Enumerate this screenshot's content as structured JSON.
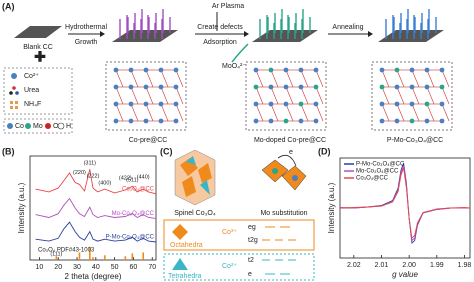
{
  "panel_a": {
    "label": "(A)",
    "blank": "Blank CC",
    "step1": [
      "Hydrothermal",
      "Growth"
    ],
    "step2": [
      "Ar Plasma",
      "Create defects",
      "Adsorption"
    ],
    "anion": "MoO₄²⁻",
    "step3": "Annealing",
    "products": [
      "Co-pre@CC",
      "Mo-doped Co-pre@CC",
      "P-Mo-Co₃O₄@CC"
    ],
    "reagents": [
      "Co²⁺",
      "Urea",
      "NH₄F"
    ],
    "atoms": [
      "Co",
      "Mo",
      "O",
      "H"
    ]
  },
  "panel_c": {
    "label": "(C)",
    "captions": [
      "Spinel Co₃O₄",
      "Mo substitution"
    ],
    "octa": {
      "name": "Octahedra",
      "ion": "Co³⁺",
      "levels": [
        "eg",
        "t2g"
      ]
    },
    "tetra": {
      "name": "Tetrahedra",
      "ion": "Co²⁺",
      "levels": [
        "t2",
        "e"
      ]
    },
    "arrow": "e"
  },
  "chart_data": [
    {
      "type": "line",
      "label": "(B)",
      "xlabel": "2 theta (degree)",
      "ylabel": "Intensity (a.u.)",
      "xlim": [
        5,
        72
      ],
      "ylim": [
        1,
        12
      ],
      "xticks": [
        10,
        20,
        30,
        40,
        50,
        60,
        70
      ],
      "x": [
        8,
        15,
        20,
        23,
        26,
        29,
        31.3,
        34,
        36.8,
        38.5,
        41,
        44.8,
        50,
        55.7,
        59.4,
        62,
        65.2,
        68,
        72
      ],
      "series": [
        {
          "name": "P-Mo-Co₃O₄@CC",
          "color": "#2b3f9e",
          "values": [
            3.2,
            3.0,
            3.3,
            4.3,
            5.0,
            4.0,
            3.4,
            3.1,
            4.0,
            3.2,
            3.0,
            3.2,
            3.0,
            3.1,
            3.4,
            3.0,
            3.3,
            3.0,
            2.9
          ]
        },
        {
          "name": "Mo-Co₃O₄@CC",
          "color": "#b04fc0",
          "values": [
            5.8,
            5.5,
            5.9,
            6.8,
            7.5,
            6.5,
            5.9,
            5.6,
            6.6,
            5.8,
            5.5,
            5.7,
            5.5,
            5.6,
            5.9,
            5.5,
            5.8,
            5.5,
            5.4
          ]
        },
        {
          "name": "Co₃O₄@CC",
          "color": "#e8474a",
          "values": [
            8.5,
            8.2,
            8.6,
            9.4,
            10.2,
            9.2,
            9.0,
            8.3,
            10.6,
            8.6,
            8.2,
            8.5,
            8.1,
            8.4,
            8.8,
            8.2,
            8.5,
            8.2,
            8.0
          ]
        }
      ],
      "reference": {
        "name": "Co₃O₄ PDF#43-1003",
        "color": "#f08a1c",
        "x": [
          19,
          31.3,
          36.8,
          38.5,
          44.8,
          55.7,
          59.4,
          65.2
        ],
        "values": [
          1.4,
          1.8,
          2.4,
          1.3,
          1.5,
          1.4,
          1.7,
          1.8
        ]
      },
      "annotations": [
        {
          "text": "(111)",
          "x": 19
        },
        {
          "text": "(220)",
          "x": 31.3
        },
        {
          "text": "(311)",
          "x": 36.8
        },
        {
          "text": "(222)",
          "x": 38.5
        },
        {
          "text": "(400)",
          "x": 44.8
        },
        {
          "text": "(422)",
          "x": 55.7
        },
        {
          "text": "(511)",
          "x": 59.4
        },
        {
          "text": "(440)",
          "x": 65.2
        }
      ]
    },
    {
      "type": "line",
      "label": "(D)",
      "xlabel": "g value",
      "ylabel": "Intensity (a.u.)",
      "xlim": [
        2.025,
        1.978
      ],
      "ylim": [
        -1,
        1
      ],
      "xticks": [
        {
          "value": 2.02,
          "label": "2.02"
        },
        {
          "value": 2.01,
          "label": "2.01"
        },
        {
          "value": 2,
          "label": "2.00"
        },
        {
          "value": 1.99,
          "label": "1.99"
        },
        {
          "value": 1.98,
          "label": "1.98"
        }
      ],
      "x": [
        2.025,
        2.02,
        2.015,
        2.01,
        2.006,
        2.004,
        2.003,
        2.002,
        2.001,
        2.0,
        1.999,
        1.998,
        1.997,
        1.995,
        1.99,
        1.985,
        1.98,
        1.978
      ],
      "series": [
        {
          "name": "P-Mo-Co₃O₄@CC",
          "color": "#2b3f9e",
          "values": [
            0,
            0,
            0.02,
            0.05,
            0.15,
            0.4,
            0.75,
            0.9,
            0.5,
            -0.2,
            -0.7,
            -0.65,
            -0.35,
            -0.1,
            -0.03,
            0,
            0,
            0
          ]
        },
        {
          "name": "Mo-Co₃O₄@CC",
          "color": "#b04fc0",
          "values": [
            0.01,
            0,
            0.02,
            0.04,
            0.13,
            0.36,
            0.7,
            0.85,
            0.45,
            -0.2,
            -0.65,
            -0.6,
            -0.32,
            -0.1,
            -0.03,
            0,
            0,
            0
          ]
        },
        {
          "name": "Co₃O₄@CC",
          "color": "#e8474a",
          "values": [
            0,
            0.01,
            0.02,
            0.04,
            0.12,
            0.33,
            0.65,
            0.8,
            0.4,
            -0.2,
            -0.6,
            -0.55,
            -0.3,
            -0.09,
            -0.02,
            0,
            0.01,
            0
          ]
        }
      ]
    }
  ]
}
